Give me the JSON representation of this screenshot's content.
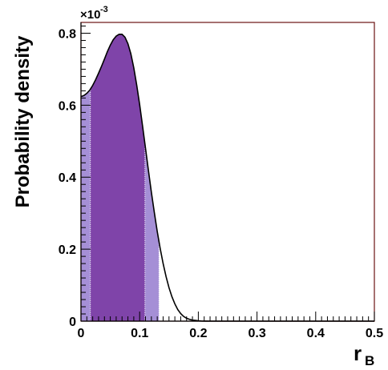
{
  "chart_data": {
    "type": "area",
    "title": "",
    "ylabel": "Probability density",
    "xlabel_main": "r",
    "xlabel_sub": "B",
    "y_exponent_base": "×10",
    "y_exponent_power": "-3",
    "xlim": [
      0,
      0.5
    ],
    "ylim": [
      0,
      0.83
    ],
    "x_ticks": [
      0,
      0.1,
      0.2,
      0.3,
      0.4,
      0.5
    ],
    "x_tick_labels": [
      "0",
      "0.1",
      "0.2",
      "0.3",
      "0.4",
      "0.5"
    ],
    "y_ticks": [
      0,
      0.2,
      0.4,
      0.6,
      0.8
    ],
    "y_tick_labels": [
      "0",
      "0.2",
      "0.4",
      "0.6",
      "0.8"
    ],
    "grid": false,
    "series": [
      {
        "x": [
          0,
          0.005,
          0.01,
          0.015,
          0.02,
          0.025,
          0.03,
          0.035,
          0.04,
          0.045,
          0.05,
          0.055,
          0.06,
          0.065,
          0.07,
          0.075,
          0.08,
          0.085,
          0.09,
          0.095,
          0.1,
          0.105,
          0.11,
          0.115,
          0.12,
          0.125,
          0.13,
          0.135,
          0.14,
          0.145,
          0.15,
          0.155,
          0.16,
          0.165,
          0.17,
          0.175,
          0.18,
          0.185,
          0.19,
          0.195,
          0.2,
          0.205,
          0.21,
          0.215,
          0.22,
          0.25,
          0.3,
          0.35,
          0.4,
          0.45,
          0.5
        ],
        "y": [
          0.624,
          0.627,
          0.633,
          0.642,
          0.655,
          0.671,
          0.689,
          0.708,
          0.728,
          0.749,
          0.767,
          0.782,
          0.792,
          0.797,
          0.797,
          0.789,
          0.771,
          0.743,
          0.704,
          0.656,
          0.602,
          0.542,
          0.48,
          0.418,
          0.358,
          0.302,
          0.249,
          0.202,
          0.16,
          0.124,
          0.093,
          0.068,
          0.048,
          0.032,
          0.021,
          0.013,
          0.008,
          0.005,
          0.003,
          0.002,
          0.001,
          0.0005,
          0.0002,
          0.0001,
          0,
          0,
          0,
          0,
          0,
          0,
          0
        ]
      }
    ],
    "bands": [
      {
        "name": "",
        "x_range": [
          0,
          0.133
        ],
        "color": "#a58fd6"
      },
      {
        "name": "",
        "x_range": [
          0.016,
          0.109
        ],
        "color": "#7f44a9"
      }
    ],
    "curve_color": "#000000",
    "frame_color": "#6b1313"
  }
}
